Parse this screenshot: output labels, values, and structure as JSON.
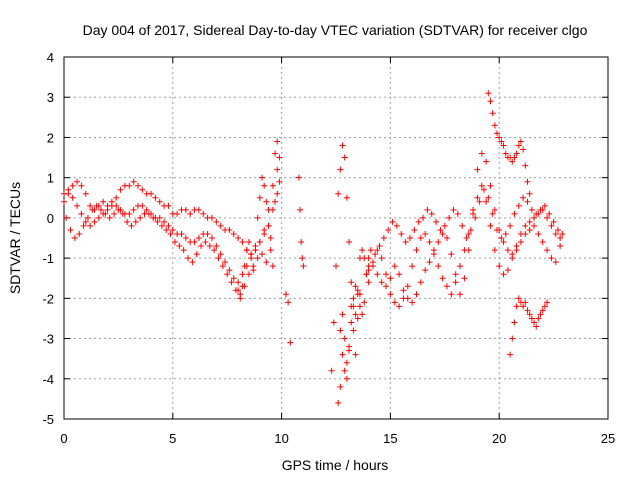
{
  "chart_data": {
    "type": "scatter",
    "title": "Day 004 of 2017, Sidereal Day-to-day VTEC variation (SDTVAR) for receiver clgo",
    "xlabel": "GPS time / hours",
    "ylabel": "SDTVAR / TECUs",
    "xlim": [
      0,
      25
    ],
    "ylim": [
      -5,
      4
    ],
    "xticks": [
      0,
      5,
      10,
      15,
      20,
      25
    ],
    "yticks": [
      -5,
      -4,
      -3,
      -2,
      -1,
      0,
      1,
      2,
      3,
      4
    ],
    "xtick_labels": [
      "0",
      "5",
      "10",
      "15",
      "20",
      "25"
    ],
    "ytick_labels": [
      "-5",
      "-4",
      "-3",
      "-2",
      "-1",
      "0",
      "1",
      "2",
      "3",
      "4"
    ],
    "grid": true,
    "marker": "+",
    "marker_color": "#ff0000",
    "series": [
      {
        "name": "SDTVAR",
        "x": [
          0.0,
          0.2,
          0.4,
          0.6,
          0.8,
          1.0,
          1.2,
          1.4,
          1.6,
          1.8,
          2.0,
          2.2,
          2.4,
          2.6,
          2.8,
          3.0,
          3.2,
          3.4,
          3.6,
          3.8,
          4.0,
          4.2,
          4.4,
          4.6,
          4.8,
          5.0,
          5.2,
          5.4,
          5.6,
          5.8,
          6.0,
          6.2,
          6.4,
          6.6,
          6.8,
          7.0,
          7.2,
          7.4,
          7.6,
          7.8,
          8.0,
          8.2,
          8.4,
          8.6,
          8.8,
          9.0,
          9.2,
          9.4,
          9.6,
          9.8,
          0.0,
          0.2,
          0.4,
          0.6,
          0.8,
          1.0,
          1.2,
          1.4,
          1.6,
          1.8,
          2.0,
          2.2,
          2.4,
          2.6,
          2.8,
          3.0,
          3.2,
          3.4,
          3.6,
          3.8,
          4.0,
          4.2,
          4.4,
          4.6,
          4.8,
          5.0,
          5.2,
          5.4,
          5.6,
          5.8,
          6.0,
          6.2,
          6.4,
          6.6,
          6.8,
          7.0,
          7.2,
          7.4,
          7.6,
          7.8,
          8.0,
          8.2,
          8.4,
          8.6,
          8.8,
          9.0,
          9.2,
          9.4,
          9.6,
          9.8,
          0.1,
          0.3,
          0.5,
          0.7,
          0.9,
          1.1,
          1.3,
          1.5,
          1.7,
          1.9,
          2.1,
          2.3,
          2.5,
          2.7,
          2.9,
          3.1,
          3.3,
          3.5,
          3.7,
          3.9,
          4.1,
          4.3,
          4.5,
          4.7,
          4.9,
          5.1,
          5.3,
          5.5,
          5.7,
          5.9,
          6.1,
          6.3,
          6.5,
          6.7,
          6.9,
          7.1,
          7.3,
          7.5,
          7.7,
          7.9,
          8.1,
          8.3,
          8.5,
          8.7,
          8.9,
          9.1,
          9.3,
          9.5,
          9.7,
          9.9,
          8.0,
          8.1,
          8.2,
          8.3,
          8.4,
          8.5,
          8.6,
          8.7,
          8.8,
          8.9,
          9.0,
          9.1,
          9.2,
          9.3,
          9.4,
          9.5,
          9.6,
          9.7,
          9.8,
          9.9,
          10.2,
          10.3,
          10.4,
          10.8,
          10.85,
          10.9,
          10.95,
          11.0,
          12.3,
          12.4,
          12.5,
          12.6,
          12.7,
          12.8,
          12.9,
          13.0,
          13.1,
          13.2,
          13.3,
          13.4,
          13.5,
          13.6,
          13.7,
          13.8,
          13.9,
          14.0,
          12.6,
          12.7,
          12.8,
          12.9,
          13.0,
          13.1,
          13.2,
          13.3,
          13.4,
          13.5,
          13.6,
          13.7,
          13.8,
          13.9,
          14.0,
          12.7,
          12.8,
          12.9,
          13.0,
          13.1,
          13.2,
          13.3,
          13.4,
          13.5,
          13.6,
          14.0,
          14.2,
          14.4,
          14.6,
          14.8,
          15.0,
          15.2,
          15.4,
          15.6,
          15.8,
          16.0,
          16.2,
          16.4,
          16.6,
          16.8,
          17.0,
          17.2,
          17.4,
          17.6,
          17.8,
          18.0,
          18.2,
          18.4,
          18.6,
          18.8,
          19.0,
          19.2,
          19.4,
          19.6,
          19.8,
          20.0,
          20.2,
          20.4,
          20.6,
          20.8,
          21.0,
          21.2,
          21.4,
          21.6,
          21.8,
          22.0,
          22.2,
          22.4,
          22.6,
          22.8,
          14.0,
          14.2,
          14.4,
          14.6,
          14.8,
          15.0,
          15.2,
          15.4,
          15.6,
          15.8,
          16.0,
          16.2,
          16.4,
          16.6,
          16.8,
          17.0,
          17.2,
          17.4,
          17.6,
          17.8,
          18.0,
          18.2,
          18.4,
          18.6,
          18.8,
          19.0,
          19.2,
          19.4,
          19.6,
          19.8,
          20.0,
          20.2,
          20.4,
          20.6,
          20.8,
          21.0,
          21.2,
          21.4,
          21.6,
          21.8,
          22.0,
          22.2,
          22.4,
          22.6,
          22.8,
          14.1,
          14.3,
          14.5,
          14.7,
          14.9,
          15.1,
          15.3,
          15.5,
          15.7,
          15.9,
          16.1,
          16.3,
          16.5,
          16.7,
          16.9,
          17.1,
          17.3,
          17.5,
          17.7,
          17.9,
          18.1,
          18.3,
          18.5,
          18.7,
          18.9,
          19.1,
          19.3,
          19.5,
          19.7,
          19.9,
          20.1,
          20.3,
          20.5,
          20.7,
          20.9,
          21.1,
          21.3,
          21.5,
          21.7,
          21.9,
          22.1,
          22.3,
          22.5,
          22.7,
          22.9,
          19.5,
          19.6,
          19.7,
          19.8,
          19.9,
          20.0,
          20.1,
          20.2,
          20.3,
          20.4,
          20.5,
          20.6,
          20.7,
          20.8,
          20.9,
          21.0,
          21.1,
          21.2,
          21.3,
          21.4,
          20.5,
          20.6,
          20.7,
          20.8,
          20.9,
          21.0,
          21.1,
          21.2,
          21.3,
          21.4,
          21.5,
          21.6,
          21.7,
          21.8,
          21.9,
          22.0,
          22.1,
          22.2
        ],
        "y": [
          0.6,
          0.7,
          0.8,
          0.9,
          0.8,
          0.6,
          0.3,
          0.2,
          0.3,
          0.4,
          0.2,
          0.3,
          0.5,
          0.7,
          0.8,
          0.8,
          0.9,
          0.8,
          0.7,
          0.6,
          0.6,
          0.5,
          0.4,
          0.3,
          0.3,
          0.1,
          0.1,
          0.2,
          0.2,
          0.1,
          0.2,
          0.2,
          0.1,
          0.0,
          0.0,
          -0.1,
          -0.2,
          -0.3,
          -0.3,
          -0.4,
          -0.5,
          -0.6,
          -0.8,
          -0.9,
          -0.8,
          -0.6,
          -0.3,
          0.2,
          0.8,
          1.2,
          0.4,
          0.6,
          0.5,
          0.3,
          0.1,
          -0.1,
          -0.2,
          -0.1,
          0.0,
          0.1,
          0.3,
          0.4,
          0.3,
          0.2,
          0.1,
          0.1,
          0.2,
          0.3,
          0.3,
          0.2,
          0.1,
          0.0,
          0.0,
          -0.1,
          -0.2,
          -0.3,
          -0.4,
          -0.4,
          -0.5,
          -0.6,
          -0.6,
          -0.5,
          -0.4,
          -0.4,
          -0.5,
          -0.7,
          -0.9,
          -1.1,
          -1.3,
          -1.5,
          -1.6,
          -1.4,
          -1.2,
          -1.0,
          -0.8,
          -0.6,
          -0.4,
          -0.2,
          0.2,
          0.6,
          0.0,
          -0.3,
          -0.5,
          -0.4,
          -0.2,
          0.0,
          0.2,
          0.3,
          0.2,
          0.1,
          0.0,
          0.1,
          0.2,
          0.1,
          -0.1,
          -0.2,
          -0.1,
          0.0,
          0.1,
          0.1,
          0.0,
          -0.1,
          -0.2,
          -0.3,
          -0.4,
          -0.6,
          -0.7,
          -0.8,
          -1.0,
          -1.1,
          -0.9,
          -0.7,
          -0.6,
          -0.7,
          -0.8,
          -1.0,
          -1.2,
          -1.4,
          -1.6,
          -1.8,
          -1.9,
          -1.7,
          -1.4,
          -1.2,
          -1.0,
          -0.9,
          -1.1,
          -0.5,
          0.4,
          1.5,
          -1.8,
          -2.0,
          -1.7,
          -1.2,
          -0.8,
          -0.6,
          -0.9,
          -1.3,
          -0.7,
          0.0,
          0.5,
          1.0,
          0.8,
          0.4,
          -0.2,
          -0.8,
          -1.2,
          1.6,
          1.9,
          0.9,
          -1.9,
          -2.1,
          -3.1,
          1.0,
          0.2,
          -0.6,
          -1.0,
          -1.2,
          -3.8,
          -2.6,
          -1.2,
          0.6,
          1.2,
          1.8,
          1.5,
          0.5,
          -0.6,
          -1.6,
          -2.2,
          -2.4,
          -1.8,
          -1.0,
          -0.8,
          -1.0,
          -1.4,
          -1.6,
          -4.6,
          -4.2,
          -3.4,
          -3.0,
          -3.6,
          -3.3,
          -2.6,
          -2.0,
          -1.7,
          -1.9,
          -2.2,
          -2.4,
          -2.1,
          -1.4,
          -1.2,
          -2.8,
          -2.4,
          -3.8,
          -4.0,
          -3.2,
          -2.2,
          -2.8,
          -3.4,
          -2.5,
          -1.9,
          -1.3,
          -1.1,
          -0.8,
          -1.0,
          -1.4,
          -1.5,
          -1.2,
          -1.4,
          -1.8,
          -2.0,
          -2.1,
          -1.9,
          -1.6,
          -1.3,
          -1.1,
          -0.8,
          -0.6,
          -0.4,
          -0.5,
          -0.9,
          -1.4,
          -1.9,
          -1.5,
          -0.8,
          0.2,
          1.2,
          1.6,
          1.4,
          0.8,
          0.2,
          -0.3,
          -0.6,
          -0.8,
          -0.9,
          -0.8,
          -0.6,
          -0.4,
          -0.3,
          -0.2,
          -0.4,
          -0.6,
          -0.8,
          -1.0,
          -1.1,
          -0.7,
          -1.0,
          -1.2,
          -1.4,
          -1.6,
          -1.7,
          -1.9,
          -2.1,
          -2.2,
          -2.0,
          -1.7,
          -1.2,
          -0.8,
          -0.5,
          -0.4,
          -0.6,
          -0.9,
          -1.2,
          -1.5,
          -1.7,
          -1.9,
          -1.6,
          -1.2,
          -0.8,
          -0.4,
          0.1,
          0.5,
          0.8,
          0.4,
          -0.2,
          -0.8,
          -1.2,
          -1.4,
          -1.3,
          -1.0,
          -0.7,
          -0.4,
          -0.2,
          -0.1,
          0.0,
          0.1,
          0.2,
          0.0,
          -0.2,
          -0.4,
          -0.5,
          -0.8,
          -0.9,
          -0.7,
          -0.5,
          -0.3,
          -0.1,
          -0.2,
          -0.4,
          -0.6,
          -0.5,
          -0.3,
          -0.1,
          0.0,
          0.2,
          0.1,
          -0.1,
          -0.3,
          -0.2,
          0.0,
          0.2,
          0.1,
          -0.2,
          -0.5,
          -0.3,
          0.0,
          0.4,
          0.7,
          0.5,
          0.1,
          -0.3,
          -0.5,
          -0.4,
          -0.2,
          0.1,
          0.3,
          0.5,
          0.4,
          0.2,
          0.1,
          0.2,
          0.3,
          0.1,
          -0.1,
          -0.3,
          -0.4,
          3.1,
          2.9,
          2.6,
          2.3,
          2.1,
          2.0,
          1.9,
          1.8,
          1.6,
          1.5,
          1.5,
          1.4,
          1.5,
          1.6,
          1.8,
          1.9,
          1.7,
          1.3,
          0.9,
          0.6,
          -3.4,
          -3.0,
          -2.6,
          -2.2,
          -2.0,
          -2.1,
          -2.2,
          -2.1,
          -2.3,
          -2.4,
          -2.5,
          -2.6,
          -2.7,
          -2.5,
          -2.4,
          -2.3,
          -2.2,
          -2.1
        ]
      }
    ]
  }
}
